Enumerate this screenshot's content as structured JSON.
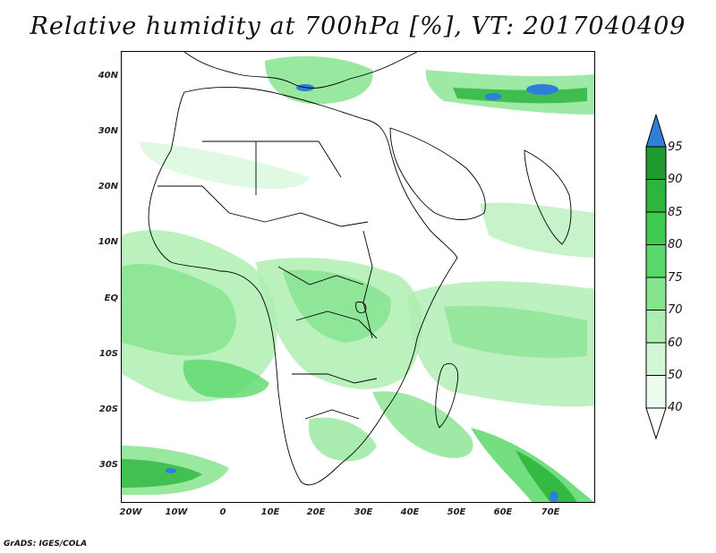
{
  "title": "Relative humidity at 700hPa [%], VT: 2017040409",
  "credit": "GrADS: IGES/COLA",
  "y_axis_labels": [
    "40N",
    "30N",
    "20N",
    "10N",
    "EQ",
    "10S",
    "20S",
    "30S"
  ],
  "x_axis_labels": [
    "20W",
    "10W",
    "0",
    "10E",
    "20E",
    "30E",
    "40E",
    "50E",
    "60E",
    "70E"
  ],
  "colorbar": {
    "levels": [
      "95",
      "90",
      "85",
      "80",
      "75",
      "70",
      "60",
      "50",
      "40"
    ],
    "colors": [
      "#2f7fd8",
      "#1f9a2f",
      "#2eb53e",
      "#3fcb4f",
      "#5bd86a",
      "#86e48f",
      "#aeeeb2",
      "#d3f6d5",
      "#ecfbed"
    ]
  },
  "colors": {
    "low_humidity": "#e6f8e6",
    "moderate_humidity": "#7fdc86",
    "high_humidity": "#2fbf3c",
    "saturated": "#2f7fd8",
    "coastlines": "#000000"
  }
}
